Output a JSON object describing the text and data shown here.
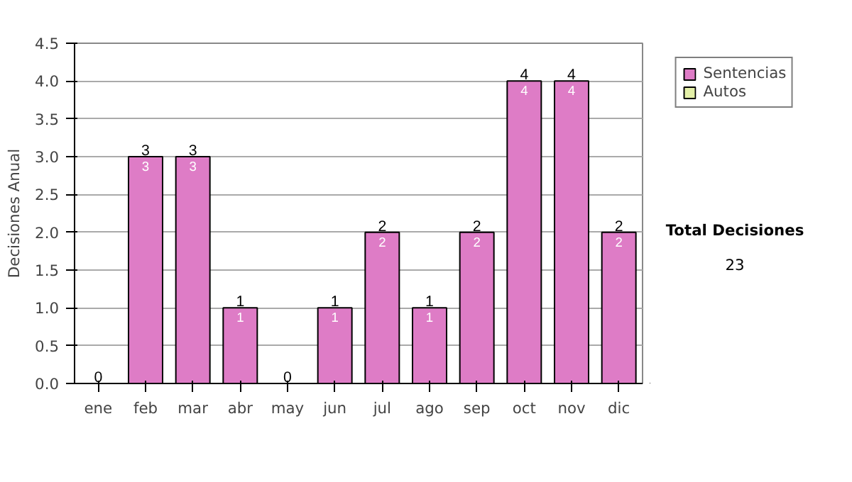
{
  "chart_data": {
    "type": "bar",
    "stacked": true,
    "ylabel": "Decisiones Anual",
    "categories": [
      "ene",
      "feb",
      "mar",
      "abr",
      "may",
      "jun",
      "jul",
      "ago",
      "sep",
      "oct",
      "nov",
      "dic"
    ],
    "series": [
      {
        "name": "Sentencias",
        "color": "#de7cc6",
        "values": [
          0,
          3,
          3,
          1,
          0,
          1,
          2,
          1,
          2,
          4,
          4,
          2
        ],
        "value_labels": [
          null,
          "3",
          "3",
          "1",
          null,
          "1",
          "2",
          "1",
          "2",
          "4",
          "4",
          "2"
        ]
      },
      {
        "name": "Autos",
        "color": "#e4f0a8",
        "values": [
          0,
          0,
          0,
          0,
          0,
          0,
          0,
          0,
          0,
          0,
          0,
          0
        ]
      }
    ],
    "totals": [
      "0",
      "3",
      "3",
      "1",
      "0",
      "1",
      "2",
      "1",
      "2",
      "4",
      "4",
      "2"
    ],
    "ylim": [
      0,
      4.5
    ],
    "yticks": [
      {
        "value": 0,
        "label": "0.0"
      },
      {
        "value": 0.5,
        "label": "0.5"
      },
      {
        "value": 1,
        "label": "1.0"
      },
      {
        "value": 1.5,
        "label": "1.5"
      },
      {
        "value": 2,
        "label": "2.0"
      },
      {
        "value": 2.5,
        "label": "2.5"
      },
      {
        "value": 3,
        "label": "3.0"
      },
      {
        "value": 3.5,
        "label": "3.5"
      },
      {
        "value": 4,
        "label": "4.0"
      },
      {
        "value": 4.5,
        "label": "4.5"
      }
    ],
    "grid": "y",
    "legend": "right",
    "annotations": [
      "Total Decisiones",
      "23"
    ]
  }
}
